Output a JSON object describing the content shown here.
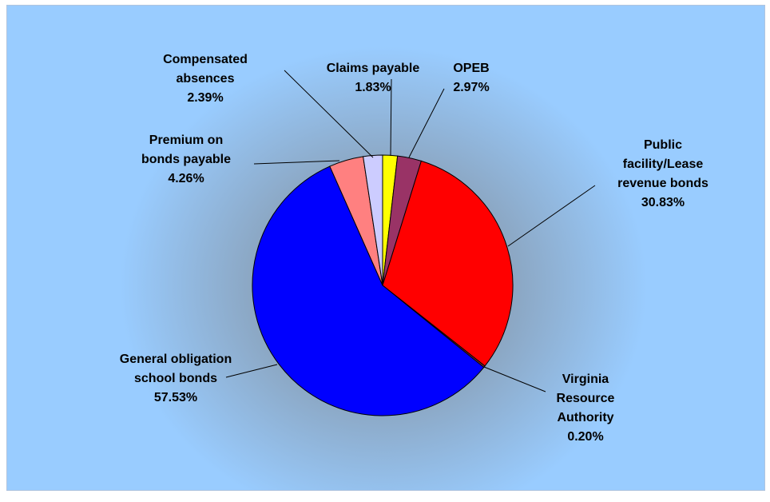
{
  "chart_data": {
    "type": "pie",
    "categories": [
      "Claims payable",
      "OPEB",
      "Public facility/Lease revenue bonds",
      "Virginia Resource Authority",
      "General obligation school bonds",
      "Premium on bonds payable",
      "Compensated absences"
    ],
    "values": [
      1.83,
      2.97,
      30.83,
      0.2,
      57.53,
      4.26,
      2.39
    ],
    "value_labels": [
      "1.83%",
      "2.97%",
      "30.83%",
      "0.20%",
      "57.53%",
      "4.26%",
      "2.39%"
    ],
    "colors": [
      "#ffff00",
      "#993366",
      "#ff0000",
      "#993333",
      "#0000ff",
      "#ff8080",
      "#ccccff"
    ]
  }
}
